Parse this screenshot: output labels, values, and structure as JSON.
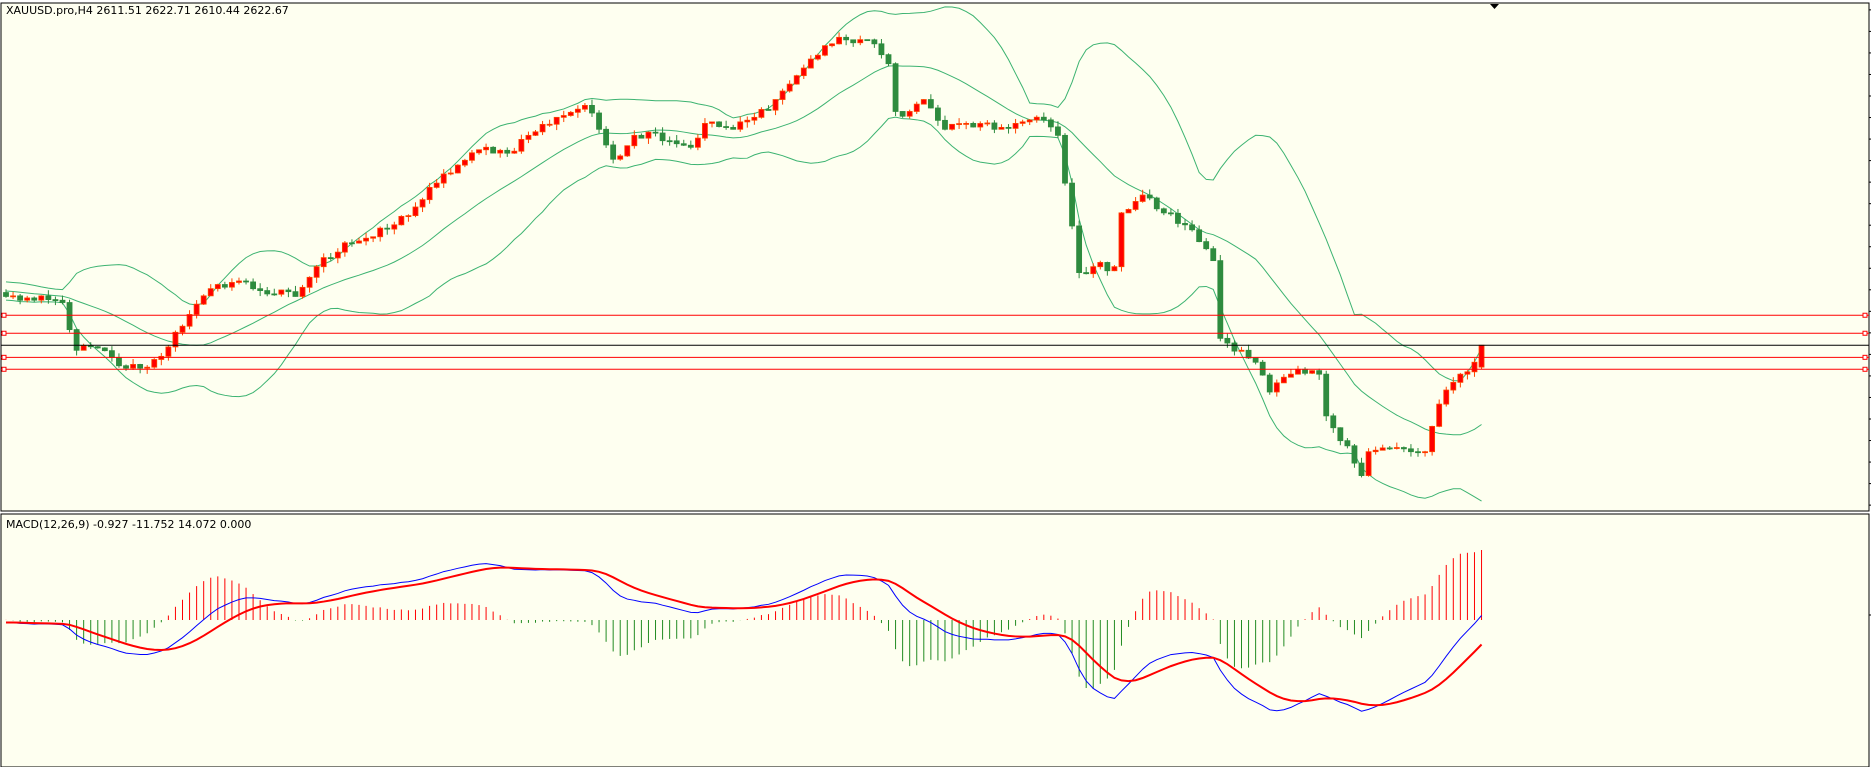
{
  "header": {
    "title": "XAUUSD.pro,H4  2611.51 2622.71 2610.44 2622.67"
  },
  "macd": {
    "label": "MACD(12,26,9) -0.927 -11.752 14.072 0.000"
  },
  "colors": {
    "background": "#fefff0",
    "bull_candle": "#ff0000",
    "bull_outline": "#ff4500",
    "bear_candle": "#2e8b3e",
    "bands": "#3cb371",
    "macd_line": "#0000ff",
    "signal_line": "#ff0000",
    "hist_pos": "#ff0000",
    "hist_neg": "#228b22",
    "hline": "#ff0000",
    "bid_line": "#000000"
  },
  "chart_data": {
    "type": "candlestick",
    "symbol": "XAUUSD.pro",
    "timeframe": "H4",
    "price_range": [
      2538,
      2797
    ],
    "bars": 210,
    "last_bar": {
      "open": 2611.51,
      "high": 2622.71,
      "low": 2610.44,
      "close": 2622.67
    },
    "close_path": [
      [
        0,
        2647.6
      ],
      [
        4,
        2645.7
      ],
      [
        8,
        2644.5
      ],
      [
        10,
        2620.1
      ],
      [
        13,
        2621.3
      ],
      [
        16,
        2612.2
      ],
      [
        19,
        2611.0
      ],
      [
        22,
        2617.0
      ],
      [
        24,
        2629.3
      ],
      [
        26,
        2638.4
      ],
      [
        30,
        2653.7
      ],
      [
        33,
        2655.5
      ],
      [
        36,
        2650.6
      ],
      [
        41,
        2647.6
      ],
      [
        44,
        2662.8
      ],
      [
        48,
        2675.0
      ],
      [
        52,
        2678.1
      ],
      [
        55,
        2684.2
      ],
      [
        58,
        2693.3
      ],
      [
        61,
        2705.5
      ],
      [
        64,
        2714.7
      ],
      [
        68,
        2723.8
      ],
      [
        71,
        2720.8
      ],
      [
        74,
        2729.9
      ],
      [
        78,
        2739.1
      ],
      [
        82,
        2745.2
      ],
      [
        84,
        2733.0
      ],
      [
        86,
        2717.7
      ],
      [
        89,
        2729.9
      ],
      [
        92,
        2731.1
      ],
      [
        97,
        2723.8
      ],
      [
        99,
        2736.0
      ],
      [
        103,
        2733.0
      ],
      [
        106,
        2739.1
      ],
      [
        109,
        2748.2
      ],
      [
        112,
        2760.4
      ],
      [
        116,
        2775.7
      ],
      [
        119,
        2778.7
      ],
      [
        122,
        2778.7
      ],
      [
        125,
        2766.5
      ],
      [
        126,
        2742.1
      ],
      [
        128,
        2742.1
      ],
      [
        130,
        2748.2
      ],
      [
        133,
        2733.0
      ],
      [
        136,
        2736.0
      ],
      [
        140,
        2733.0
      ],
      [
        143,
        2736.0
      ],
      [
        147,
        2737.8
      ],
      [
        149,
        2729.9
      ],
      [
        150,
        2705.5
      ],
      [
        152,
        2659.8
      ],
      [
        154,
        2662.8
      ],
      [
        157,
        2662.8
      ],
      [
        158,
        2690.3
      ],
      [
        161,
        2699.4
      ],
      [
        164,
        2690.3
      ],
      [
        167,
        2684.2
      ],
      [
        170,
        2672.0
      ],
      [
        171,
        2665.9
      ],
      [
        172,
        2626.2
      ],
      [
        175,
        2620.1
      ],
      [
        177,
        2614.0
      ],
      [
        179,
        2598.8
      ],
      [
        182,
        2607.9
      ],
      [
        186,
        2607.9
      ],
      [
        187,
        2586.6
      ],
      [
        190,
        2571.3
      ],
      [
        192,
        2556.1
      ],
      [
        193,
        2568.3
      ],
      [
        196,
        2570.1
      ],
      [
        199,
        2568.3
      ],
      [
        201,
        2568.3
      ],
      [
        203,
        2592.6
      ],
      [
        206,
        2607.9
      ],
      [
        208,
        2614.0
      ],
      [
        209,
        2622.67
      ]
    ],
    "indicators": {
      "bollinger": {
        "period": 20,
        "deviation": 2
      },
      "macd": {
        "fast": 12,
        "slow": 26,
        "signal": 9
      }
    },
    "horizontal_lines": [
      {
        "price": 2638.0,
        "color": "red"
      },
      {
        "price": 2628.8,
        "color": "red"
      },
      {
        "price": 2622.67,
        "color": "black"
      },
      {
        "price": 2616.5,
        "color": "red"
      },
      {
        "price": 2610.4,
        "color": "red"
      }
    ]
  }
}
